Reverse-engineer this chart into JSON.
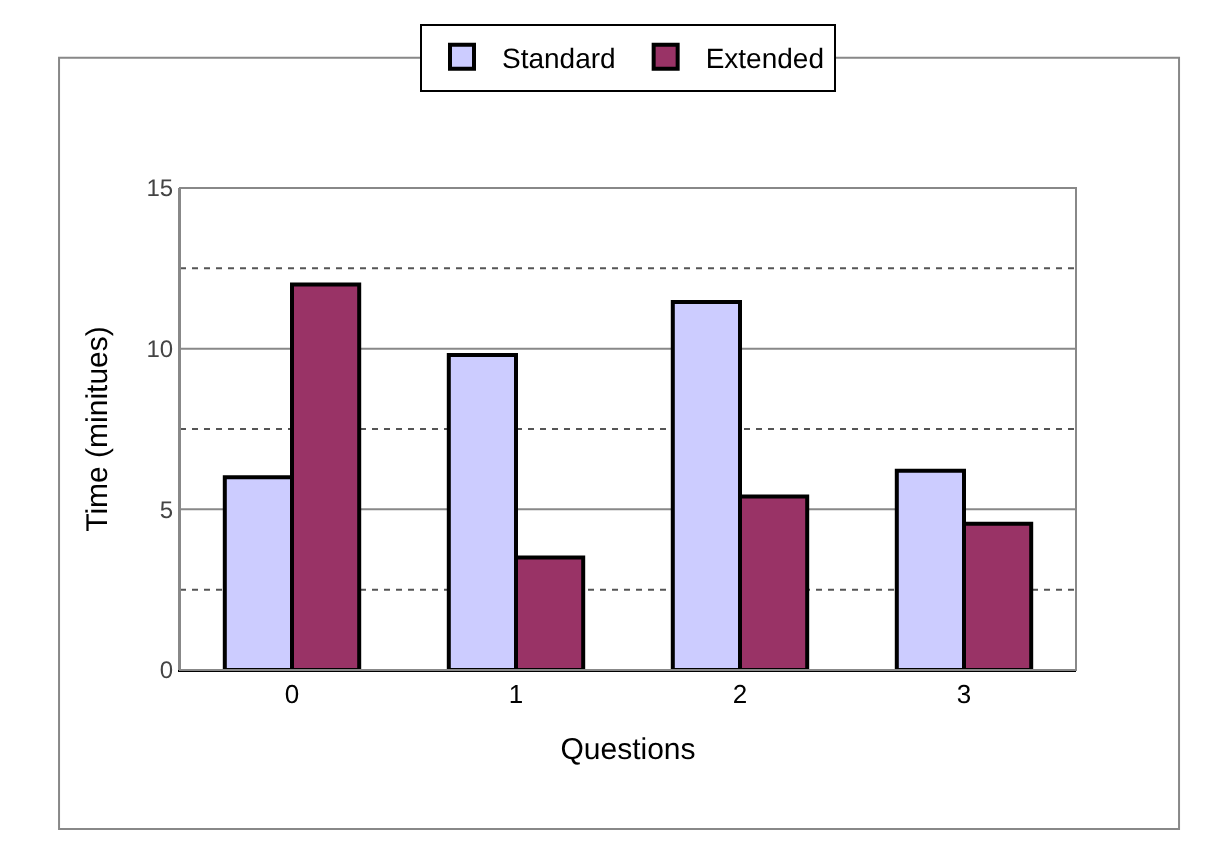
{
  "chart_data": {
    "type": "bar",
    "xlabel": "Questions",
    "ylabel": "Time (minitues)",
    "categories": [
      "0",
      "1",
      "2",
      "3"
    ],
    "series": [
      {
        "name": "Standard",
        "color": "#ccccff",
        "values": [
          6.0,
          9.8,
          11.45,
          6.2
        ]
      },
      {
        "name": "Extended",
        "color": "#993366",
        "values": [
          12.0,
          3.5,
          5.4,
          4.55
        ]
      }
    ],
    "ylim": [
      0,
      15
    ],
    "yticks": [
      0,
      {
        "value": 2.5,
        "label": null
      },
      5,
      {
        "value": 7.5,
        "label": null
      },
      10,
      {
        "value": 12.5,
        "label": null
      },
      15
    ],
    "grid": "y",
    "legend": "top"
  }
}
